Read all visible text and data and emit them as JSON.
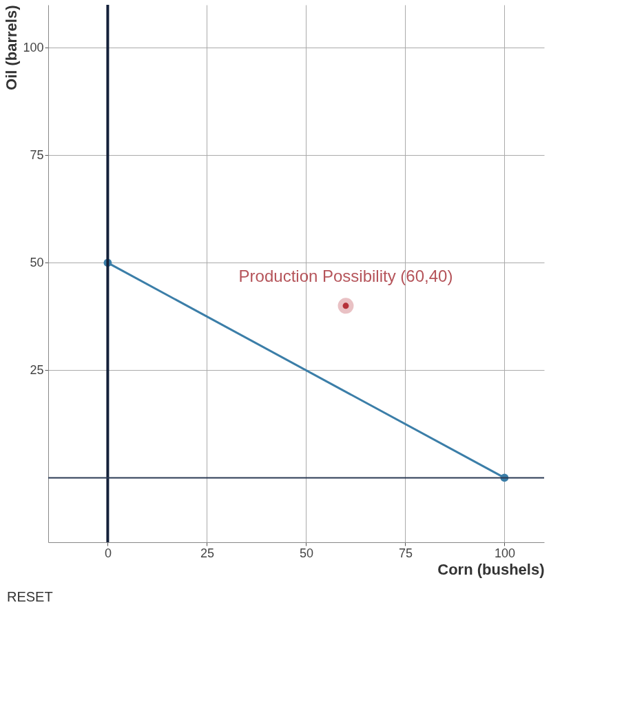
{
  "chart_data": {
    "type": "line",
    "xlabel": "Corn (bushels)",
    "ylabel": "Oil (barrels)",
    "x": [
      0,
      100
    ],
    "series": [
      {
        "color": "#3b7ea8",
        "values": [
          50,
          0
        ],
        "marker": "circle"
      },
      {
        "type": "scatter",
        "color": "#b5323a",
        "x": [
          60
        ],
        "values": [
          40
        ],
        "marker": "circle"
      }
    ],
    "xlim": [
      -15,
      110
    ],
    "ylim": [
      -15,
      110
    ],
    "xticks": [
      0,
      25,
      50,
      75,
      100
    ],
    "yticks": [
      25,
      50,
      75,
      100
    ],
    "grid": true,
    "ref_lines": [
      {
        "axis": "x",
        "value": 0,
        "color": "#14213a"
      },
      {
        "axis": "y",
        "value": 0,
        "color": "#2b3b55"
      }
    ],
    "annotations": [
      {
        "text": "Production Possibility (60,40)",
        "x": 60,
        "y": 40
      },
      "RESET"
    ]
  }
}
